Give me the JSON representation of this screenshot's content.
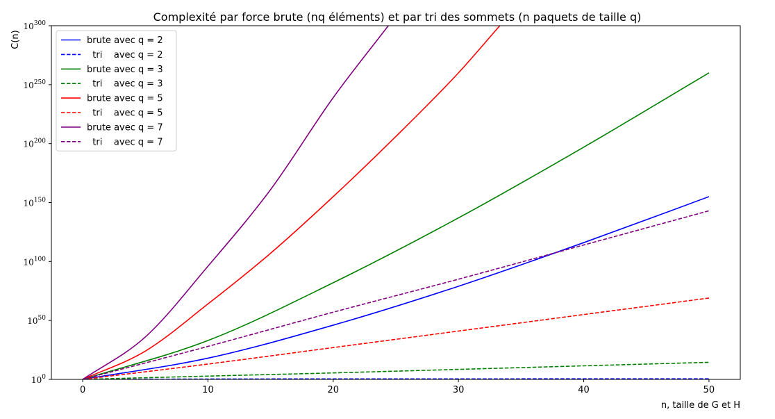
{
  "chart_data": {
    "type": "line",
    "title": "Complexité par force brute (nq éléments) et par tri des sommets (n paquets de taille q)",
    "xlabel": "n, taille de G et H",
    "ylabel": "C(n)",
    "xlim": [
      -2.5,
      52.5
    ],
    "ylim_log10": [
      0,
      300
    ],
    "y_scale": "log",
    "x_ticks": [
      0,
      10,
      20,
      30,
      40,
      50
    ],
    "x_tick_labels": [
      "0",
      "10",
      "20",
      "30",
      "40",
      "50"
    ],
    "y_ticks_log10": [
      0,
      50,
      100,
      150,
      200,
      250,
      300
    ],
    "y_tick_bases": [
      "10",
      "10",
      "10",
      "10",
      "10",
      "10",
      "10"
    ],
    "y_tick_exps": [
      "0",
      "50",
      "100",
      "150",
      "200",
      "250",
      "300"
    ],
    "legend_position": "upper-left",
    "grid": false,
    "series": [
      {
        "name": "brute avec q = 2",
        "color": "#0000ff",
        "dash": false,
        "kind": "brute",
        "q": 2,
        "x": [
          0,
          10,
          20,
          30,
          40,
          50
        ],
        "log10_y": [
          0,
          18,
          46,
          79,
          116,
          155
        ]
      },
      {
        "name": "  tri    avec q = 2",
        "color": "#0000ff",
        "dash": true,
        "kind": "tri",
        "q": 2,
        "x": [
          0,
          10,
          20,
          30,
          40,
          50
        ],
        "log10_y": [
          0,
          0.3,
          0.4,
          0.4,
          0.5,
          0.5
        ]
      },
      {
        "name": "brute avec q = 3",
        "color": "#008000",
        "dash": false,
        "kind": "brute",
        "q": 3,
        "x": [
          0,
          10,
          20,
          30,
          40,
          50
        ],
        "log10_y": [
          0,
          33,
          82,
          137,
          197,
          260
        ]
      },
      {
        "name": "  tri    avec q = 3",
        "color": "#008000",
        "dash": true,
        "kind": "tri",
        "q": 3,
        "x": [
          0,
          10,
          20,
          30,
          40,
          50
        ],
        "log10_y": [
          0,
          2.8,
          5.5,
          8.5,
          11.5,
          14.5
        ]
      },
      {
        "name": "brute avec q = 5",
        "color": "#ff0000",
        "dash": false,
        "kind": "brute",
        "q": 5,
        "x": [
          0,
          5,
          10,
          15,
          20,
          25,
          30,
          33.3
        ],
        "log10_y": [
          0,
          24,
          64,
          107,
          155,
          206,
          260,
          300
        ]
      },
      {
        "name": "  tri    avec q = 5",
        "color": "#ff0000",
        "dash": true,
        "kind": "tri",
        "q": 5,
        "x": [
          0,
          10,
          20,
          30,
          40,
          50
        ],
        "log10_y": [
          0,
          13,
          27,
          41,
          55,
          69
        ]
      },
      {
        "name": "brute avec q = 7",
        "color": "#800080",
        "dash": false,
        "kind": "brute",
        "q": 7,
        "x": [
          0,
          5,
          10,
          15,
          20,
          24.4
        ],
        "log10_y": [
          0,
          36,
          96,
          161,
          239,
          300
        ]
      },
      {
        "name": "  tri    avec q = 7",
        "color": "#800080",
        "dash": true,
        "kind": "tri",
        "q": 7,
        "x": [
          0,
          10,
          20,
          30,
          40,
          50
        ],
        "log10_y": [
          0,
          28,
          57,
          85,
          114,
          143
        ]
      }
    ]
  }
}
